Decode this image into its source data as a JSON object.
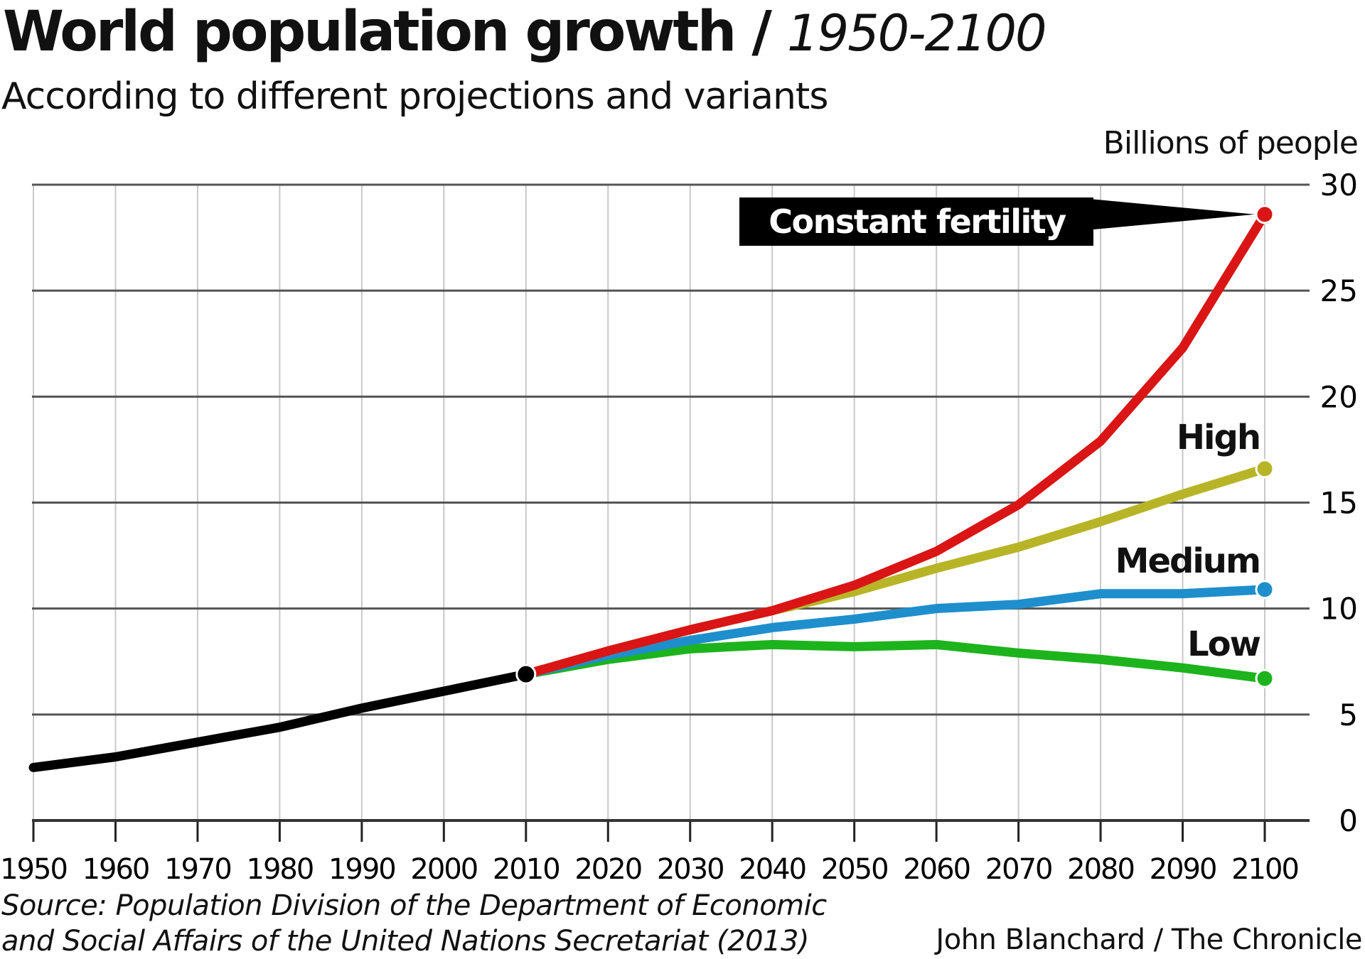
{
  "title": "World population growth /",
  "title_range": "1950-2100",
  "subtitle": "According to different projections and variants",
  "source": [
    "Source: Population Division of the Department of Economic",
    "and Social Affairs of the United Nations Secretariat (2013)"
  ],
  "credit": "John Blanchard / The Chronicle",
  "chart_data": {
    "type": "line",
    "title": "World population growth / 1950-2100",
    "subtitle": "According to different projections and variants",
    "ylabel": "Billions of people",
    "xlabel": "",
    "xlim": [
      1950,
      2100
    ],
    "ylim": [
      0,
      30
    ],
    "x_ticks": [
      1950,
      1960,
      1970,
      1980,
      1990,
      2000,
      2010,
      2020,
      2030,
      2040,
      2050,
      2060,
      2070,
      2080,
      2090,
      2100
    ],
    "y_ticks": [
      0,
      5,
      10,
      15,
      20,
      25,
      30
    ],
    "grid": true,
    "series": [
      {
        "name": "",
        "color": "#000000",
        "x": [
          1950,
          1960,
          1970,
          1980,
          1990,
          2000,
          2010
        ],
        "y": [
          2.5,
          3.0,
          3.7,
          4.4,
          5.3,
          6.1,
          6.9
        ]
      },
      {
        "name": "Low",
        "color": "#1db31d",
        "x": [
          2010,
          2020,
          2030,
          2040,
          2050,
          2060,
          2070,
          2080,
          2090,
          2100
        ],
        "y": [
          6.9,
          7.6,
          8.1,
          8.3,
          8.2,
          8.3,
          7.9,
          7.6,
          7.2,
          6.7
        ]
      },
      {
        "name": "Medium",
        "color": "#1e8fcc",
        "x": [
          2010,
          2020,
          2030,
          2040,
          2050,
          2060,
          2070,
          2080,
          2090,
          2100
        ],
        "y": [
          6.9,
          7.8,
          8.5,
          9.1,
          9.5,
          10.0,
          10.2,
          10.7,
          10.7,
          10.9
        ]
      },
      {
        "name": "High",
        "color": "#b8b428",
        "x": [
          2010,
          2020,
          2030,
          2040,
          2050,
          2060,
          2070,
          2080,
          2090,
          2100
        ],
        "y": [
          6.9,
          8.0,
          9.0,
          9.9,
          10.8,
          11.9,
          12.9,
          14.1,
          15.4,
          16.6
        ]
      },
      {
        "name": "Constant fertility",
        "color": "#d91515",
        "x": [
          2010,
          2020,
          2030,
          2040,
          2050,
          2060,
          2070,
          2080,
          2090,
          2100
        ],
        "y": [
          6.9,
          8.0,
          9.0,
          9.9,
          11.1,
          12.7,
          14.9,
          17.9,
          22.3,
          28.6
        ]
      }
    ]
  }
}
